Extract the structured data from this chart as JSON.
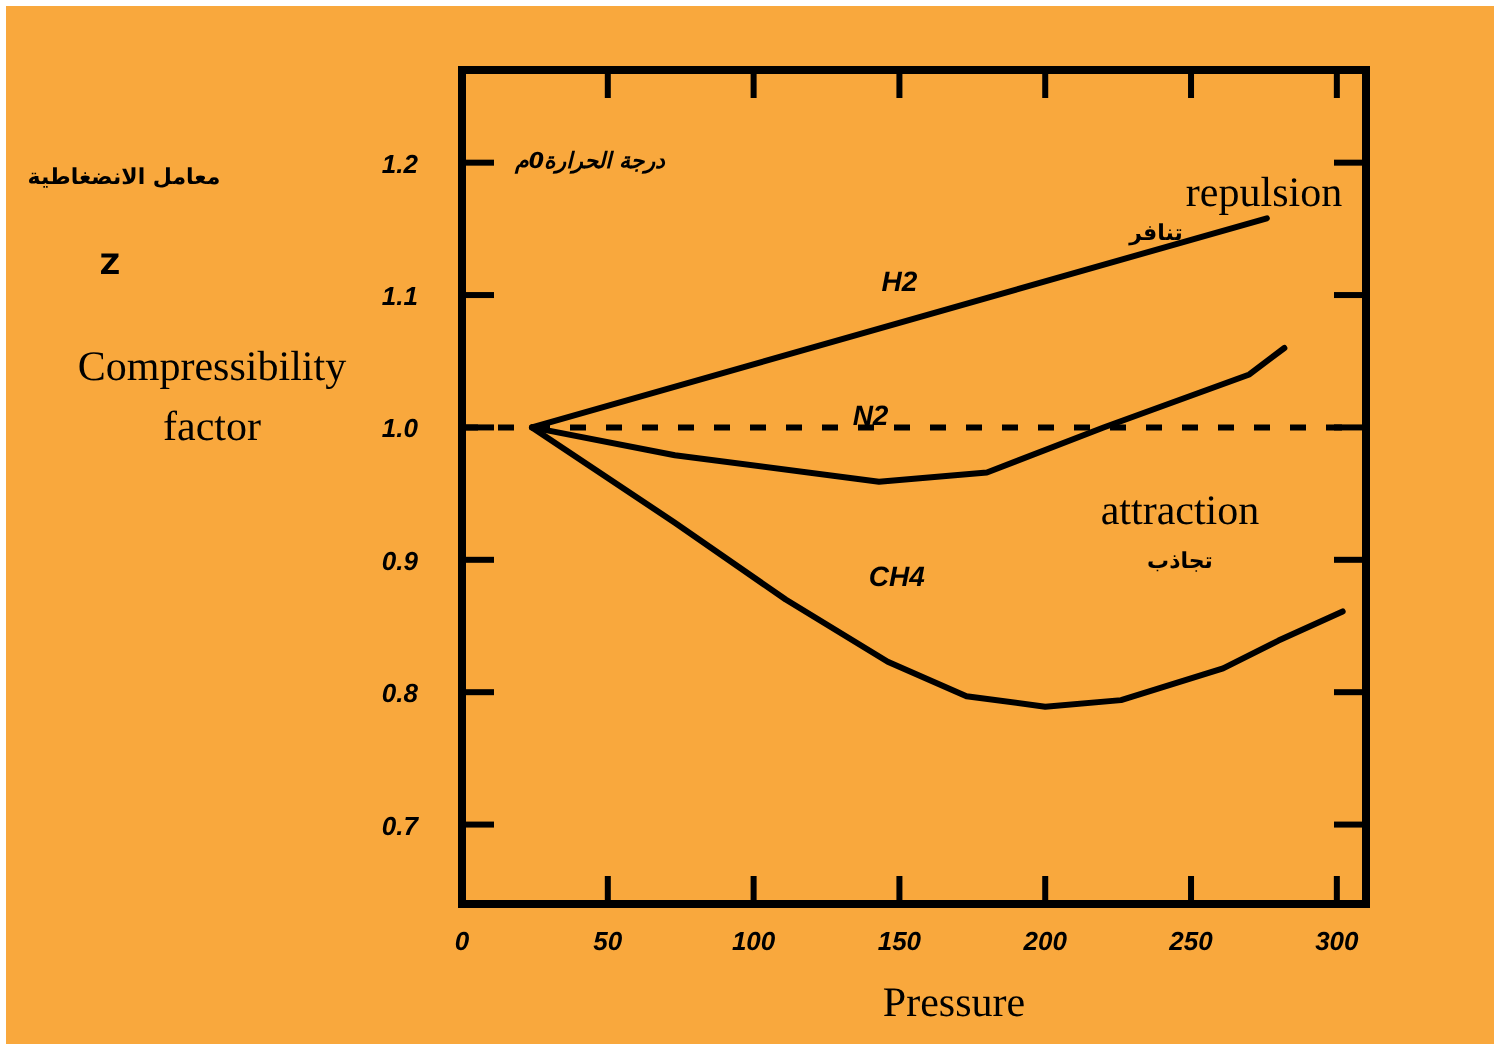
{
  "chart_data": {
    "type": "line",
    "xlabel": "Pressure",
    "ylabel": "Compressibility factor",
    "xlim": [
      0,
      310
    ],
    "xticks": [
      0,
      50,
      100,
      150,
      200,
      250,
      300
    ],
    "ylim": [
      0.64,
      1.27
    ],
    "yticks": [
      {
        "value": 0.7,
        "label": "0.7"
      },
      {
        "value": 0.8,
        "label": "0.8"
      },
      {
        "value": 0.9,
        "label": "0.9"
      },
      {
        "value": 1.0,
        "label": "1.0"
      },
      {
        "value": 1.1,
        "label": "1.1"
      },
      {
        "value": 1.2,
        "label": "1.2"
      }
    ],
    "grid": false,
    "line_style": "solid",
    "series": [
      {
        "name": "H2",
        "color": "#000000",
        "x": [
          24,
          276
        ],
        "values": [
          1.0,
          1.158
        ]
      },
      {
        "name": "N2",
        "color": "#000000",
        "x": [
          24,
          73,
          143,
          180,
          220,
          270,
          282
        ],
        "values": [
          1.0,
          0.979,
          0.959,
          0.966,
          1.0,
          1.04,
          1.06
        ]
      },
      {
        "name": "CH4",
        "color": "#000000",
        "x": [
          24,
          73,
          111,
          146,
          173,
          200,
          226,
          261,
          280,
          302
        ],
        "values": [
          1.0,
          0.928,
          0.87,
          0.823,
          0.797,
          0.789,
          0.794,
          0.818,
          0.839,
          0.861
        ]
      }
    ],
    "ref_lines": [
      {
        "axis": "y",
        "value": 1.0,
        "color": "#000000",
        "line_style": "dashed"
      }
    ],
    "annotations": [
      "معامل الانضغاطية",
      "Z",
      "درجة الحرارة0م",
      "repulsion",
      "تنافر",
      "attraction",
      "تجاذب"
    ]
  }
}
